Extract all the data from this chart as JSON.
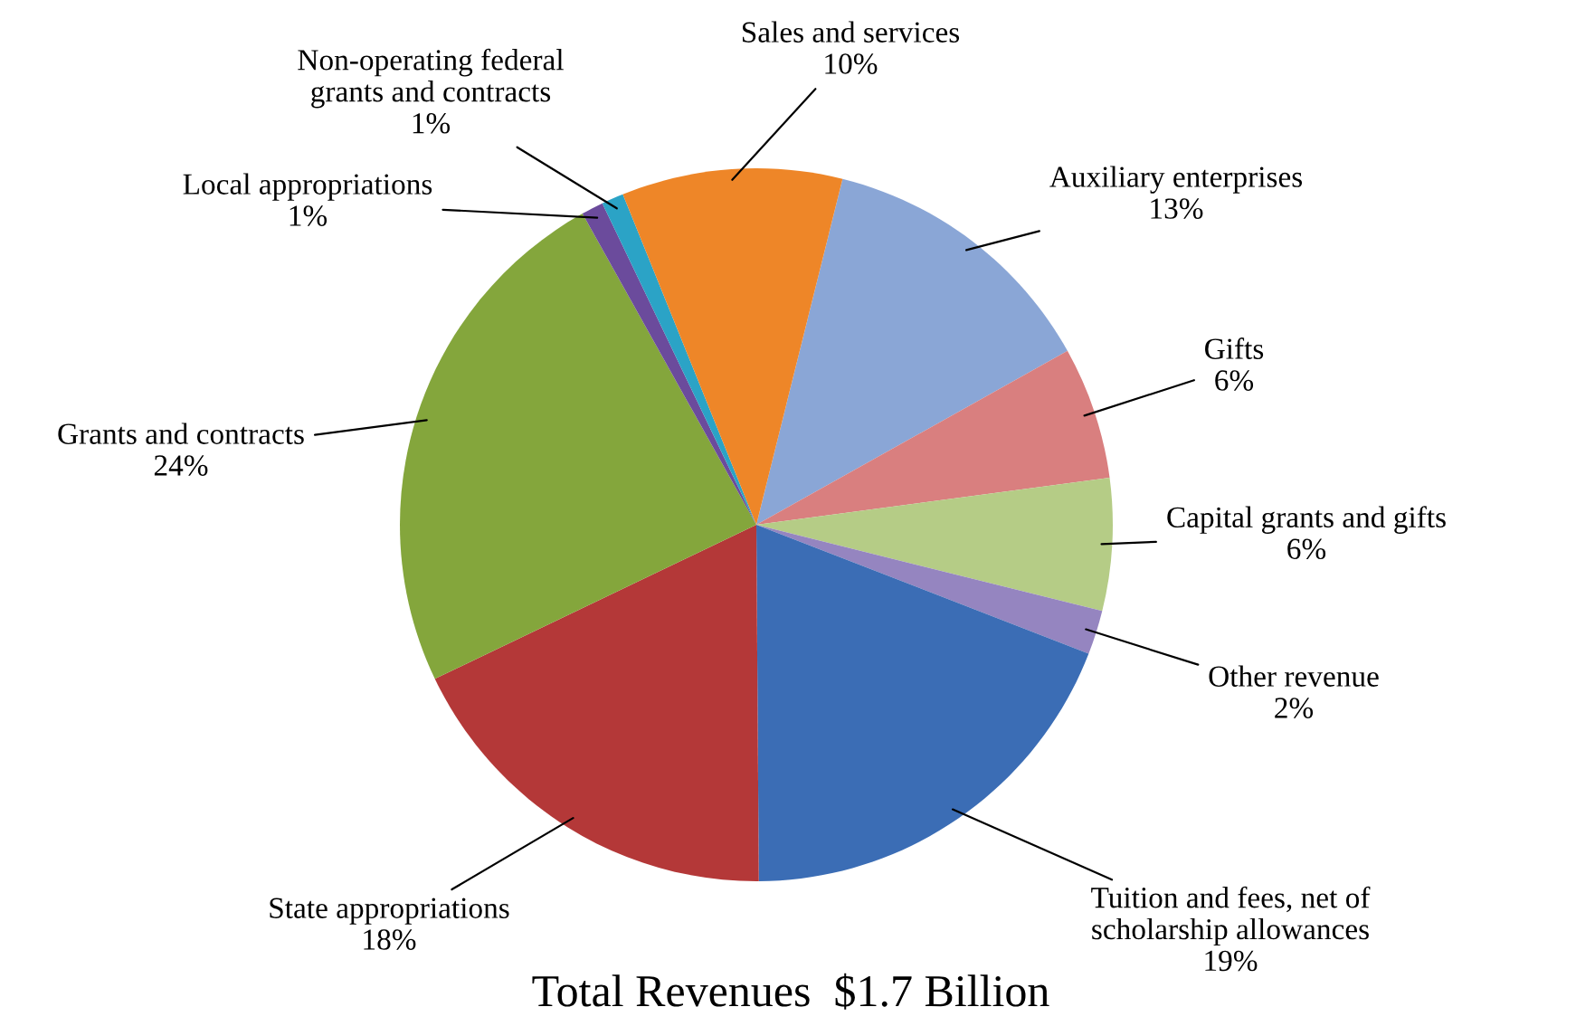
{
  "chart_data": {
    "type": "pie",
    "title": "Total Revenues  $1.7 Billion",
    "categories": [
      "Auxiliary enterprises",
      "Gifts",
      "Capital grants and gifts",
      "Other revenue",
      "Tuition and fees, net of scholarship allowances",
      "State appropriations",
      "Grants and contracts",
      "Local appropriations",
      "Non-operating federal grants and contracts",
      "Sales and services"
    ],
    "values": [
      13,
      6,
      6,
      2,
      19,
      18,
      24,
      1,
      1,
      10
    ],
    "colors": [
      "#8aa6d6",
      "#d97f7f",
      "#b5cc86",
      "#9585c0",
      "#3b6db5",
      "#b43838",
      "#84a63c",
      "#6b4b9c",
      "#2ba3c6",
      "#ee8628"
    ],
    "value_labels": [
      "13%",
      "6%",
      "6%",
      "2%",
      "19%",
      "18%",
      "24%",
      "1%",
      "1%",
      "10%"
    ],
    "legend": false
  }
}
